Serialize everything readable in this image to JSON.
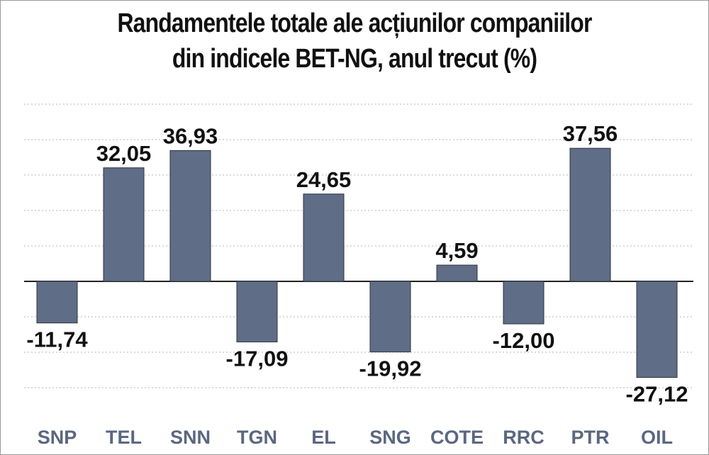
{
  "chart_data": {
    "type": "bar",
    "title": [
      "Randamentele totale ale acțiunilor companiilor",
      "din indicele BET-NG, anul trecut  (%)"
    ],
    "categories": [
      "SNP",
      "TEL",
      "SNN",
      "TGN",
      "EL",
      "SNG",
      "COTE",
      "RRC",
      "PTR",
      "OIL"
    ],
    "values": [
      -11.74,
      32.05,
      36.93,
      -17.09,
      24.65,
      -19.92,
      4.59,
      -12.0,
      37.56,
      -27.12
    ],
    "value_labels": [
      "-11,74",
      "32,05",
      "36,93",
      "-17,09",
      "24,65",
      "-19,92",
      "4,59",
      "-12,00",
      "37,56",
      "-27,12"
    ],
    "xlabel": "",
    "ylabel": "",
    "ylim": [
      -30,
      50
    ],
    "grid": true,
    "bar_color": "#5f6d86",
    "tick_color": "#5b6780"
  }
}
